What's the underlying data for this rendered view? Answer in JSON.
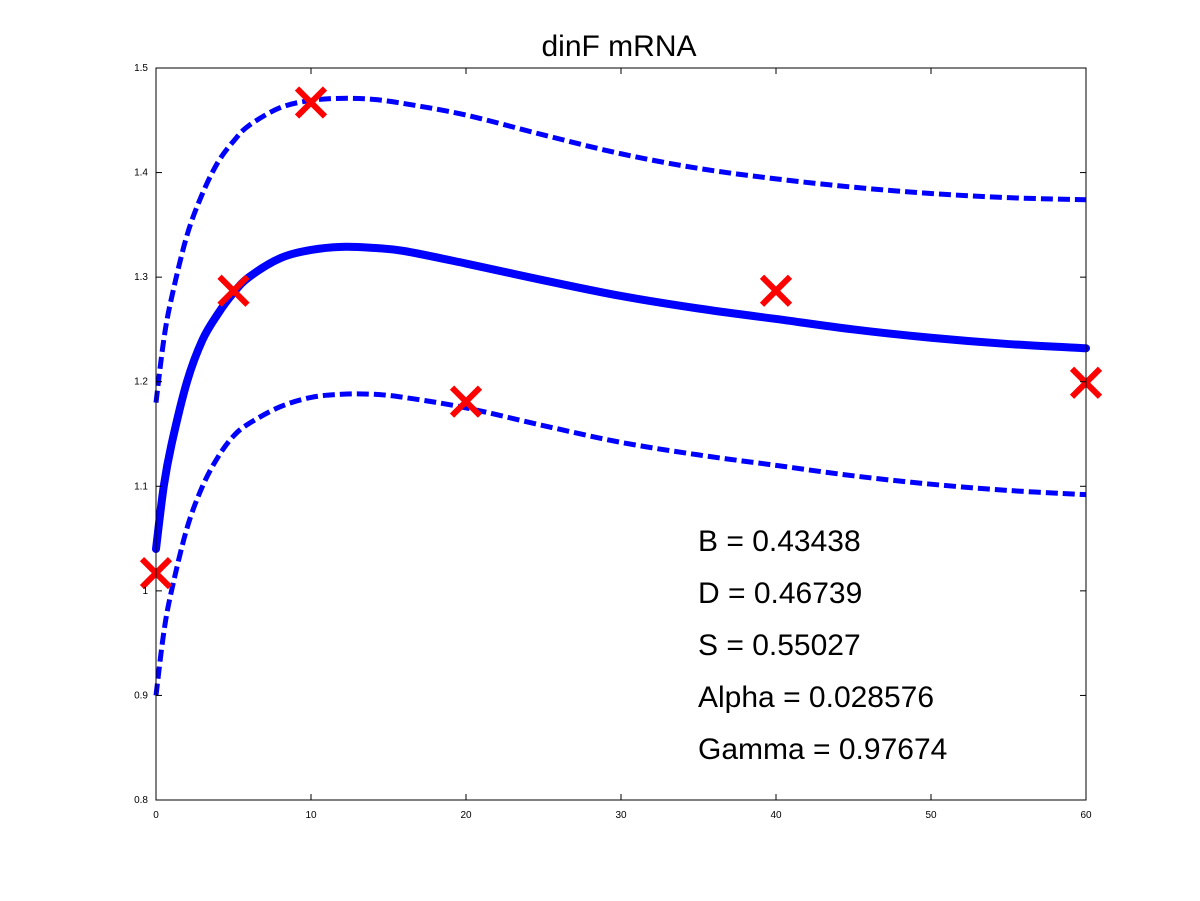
{
  "chart_data": {
    "type": "line",
    "title": "dinF mRNA",
    "xlabel": "",
    "ylabel": "",
    "xlim": [
      0,
      60
    ],
    "ylim": [
      0.8,
      1.5
    ],
    "x_ticks": [
      "0",
      "10",
      "20",
      "30",
      "40",
      "50",
      "60"
    ],
    "y_ticks": [
      "0.8",
      "0.9",
      "1",
      "1.1",
      "1.2",
      "1.3",
      "1.4",
      "1.5"
    ],
    "grid": false,
    "colors": {
      "fit": "#0000ff",
      "observed": "#ff0000"
    },
    "series": [
      {
        "style": "dashed",
        "x": [
          0,
          0.5,
          1,
          2,
          3,
          4,
          5,
          6,
          8,
          10,
          12,
          14,
          16,
          20,
          25,
          30,
          35,
          40,
          45,
          50,
          55,
          60
        ],
        "y": [
          1.18,
          1.24,
          1.28,
          1.34,
          1.38,
          1.41,
          1.43,
          1.445,
          1.462,
          1.469,
          1.471,
          1.47,
          1.466,
          1.455,
          1.436,
          1.418,
          1.404,
          1.394,
          1.386,
          1.38,
          1.376,
          1.374
        ]
      },
      {
        "style": "solid",
        "x": [
          0,
          0.5,
          1,
          2,
          3,
          4,
          5,
          6,
          8,
          10,
          12,
          14,
          16,
          20,
          25,
          30,
          35,
          40,
          45,
          50,
          55,
          60
        ],
        "y": [
          1.04,
          1.1,
          1.14,
          1.2,
          1.24,
          1.265,
          1.285,
          1.3,
          1.318,
          1.326,
          1.329,
          1.328,
          1.325,
          1.313,
          1.297,
          1.282,
          1.27,
          1.26,
          1.25,
          1.242,
          1.236,
          1.232
        ]
      },
      {
        "style": "dashed",
        "x": [
          0,
          0.5,
          1,
          2,
          3,
          4,
          5,
          6,
          8,
          10,
          12,
          14,
          16,
          20,
          25,
          30,
          35,
          40,
          45,
          50,
          55,
          60
        ],
        "y": [
          0.9,
          0.96,
          1.0,
          1.06,
          1.1,
          1.128,
          1.148,
          1.16,
          1.176,
          1.185,
          1.188,
          1.188,
          1.185,
          1.175,
          1.158,
          1.142,
          1.13,
          1.12,
          1.11,
          1.102,
          1.096,
          1.092
        ]
      },
      {
        "style": "markers",
        "x": [
          0,
          5,
          10,
          20,
          40,
          60
        ],
        "y": [
          1.017,
          1.287,
          1.467,
          1.181,
          1.287,
          1.199
        ]
      }
    ],
    "annotations": [
      "B = 0.43438",
      "D = 0.46739",
      "S = 0.55027",
      "Alpha = 0.028576",
      "Gamma = 0.97674"
    ]
  }
}
